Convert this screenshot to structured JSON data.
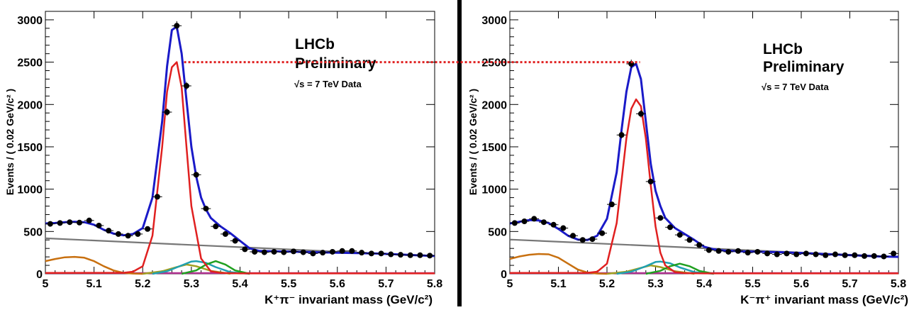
{
  "chart_data": [
    {
      "type": "scatter",
      "xlabel": "K⁺π⁻ invariant mass (GeV/c²)",
      "ylabel": "Events / ( 0.02 GeV/c² )",
      "xlim": [
        5.0,
        5.8
      ],
      "ylim": [
        0,
        3100
      ],
      "xticks": [
        "5",
        "5.1",
        "5.2",
        "5.3",
        "5.4",
        "5.5",
        "5.6",
        "5.7",
        "5.8"
      ],
      "yticks": [
        "0",
        "500",
        "1000",
        "1500",
        "2000",
        "2500",
        "3000"
      ],
      "annotation": {
        "experiment": "LHCb",
        "status": "Preliminary",
        "energy": "√s = 7 TeV Data"
      },
      "reference_line_y": 2500,
      "series": [
        {
          "kind": "data",
          "color": "#000000",
          "x": [
            5.01,
            5.03,
            5.05,
            5.07,
            5.09,
            5.11,
            5.13,
            5.15,
            5.17,
            5.19,
            5.21,
            5.23,
            5.25,
            5.27,
            5.29,
            5.31,
            5.33,
            5.35,
            5.37,
            5.39,
            5.41,
            5.43,
            5.45,
            5.47,
            5.49,
            5.51,
            5.53,
            5.55,
            5.57,
            5.59,
            5.61,
            5.63,
            5.65,
            5.67,
            5.69,
            5.71,
            5.73,
            5.75,
            5.77,
            5.79
          ],
          "y": [
            590,
            600,
            610,
            605,
            630,
            570,
            510,
            470,
            450,
            470,
            530,
            910,
            1910,
            2930,
            2220,
            1170,
            770,
            560,
            470,
            390,
            290,
            260,
            255,
            260,
            255,
            265,
            255,
            240,
            250,
            260,
            270,
            270,
            250,
            240,
            240,
            230,
            225,
            220,
            220,
            215
          ]
        },
        {
          "kind": "total_fit",
          "color": "#1a1ac8",
          "x": [
            5.0,
            5.02,
            5.04,
            5.06,
            5.08,
            5.1,
            5.12,
            5.14,
            5.16,
            5.18,
            5.2,
            5.22,
            5.24,
            5.25,
            5.26,
            5.27,
            5.28,
            5.29,
            5.3,
            5.31,
            5.32,
            5.33,
            5.34,
            5.36,
            5.38,
            5.4,
            5.42,
            5.44,
            5.48,
            5.52,
            5.56,
            5.6,
            5.64,
            5.68,
            5.72,
            5.76,
            5.8
          ],
          "y": [
            595,
            600,
            610,
            615,
            610,
            580,
            520,
            475,
            455,
            470,
            540,
            900,
            1800,
            2450,
            2880,
            2920,
            2600,
            2050,
            1500,
            1150,
            900,
            760,
            660,
            560,
            480,
            390,
            300,
            270,
            265,
            260,
            255,
            250,
            245,
            240,
            230,
            220,
            210
          ]
        },
        {
          "kind": "signal",
          "color": "#e02020",
          "x": [
            5.0,
            5.16,
            5.18,
            5.2,
            5.22,
            5.24,
            5.25,
            5.26,
            5.27,
            5.28,
            5.29,
            5.3,
            5.32,
            5.34,
            5.36,
            5.4,
            5.8
          ],
          "y": [
            10,
            12,
            25,
            90,
            450,
            1500,
            2150,
            2440,
            2500,
            2200,
            1500,
            800,
            180,
            30,
            10,
            5,
            5
          ]
        },
        {
          "kind": "combinatorial_background",
          "color": "#777777",
          "x": [
            5.0,
            5.8
          ],
          "y": [
            420,
            210
          ]
        },
        {
          "kind": "partially_reconstructed_background",
          "color": "#c87010",
          "x": [
            5.0,
            5.02,
            5.04,
            5.06,
            5.08,
            5.1,
            5.12,
            5.14,
            5.16,
            5.18,
            5.2
          ],
          "y": [
            150,
            175,
            195,
            200,
            190,
            150,
            90,
            40,
            12,
            3,
            0
          ]
        },
        {
          "kind": "peaking_background_1",
          "color": "#20a0b0",
          "x": [
            5.22,
            5.25,
            5.28,
            5.3,
            5.31,
            5.33,
            5.35,
            5.38,
            5.42
          ],
          "y": [
            0,
            30,
            100,
            145,
            150,
            130,
            80,
            20,
            0
          ]
        },
        {
          "kind": "peaking_background_2",
          "color": "#20a020",
          "x": [
            5.28,
            5.31,
            5.33,
            5.35,
            5.37,
            5.39,
            5.42
          ],
          "y": [
            0,
            40,
            110,
            150,
            110,
            40,
            0
          ]
        },
        {
          "kind": "peaking_background_3",
          "color": "#a0a020",
          "x": [
            5.2,
            5.24,
            5.27,
            5.29,
            5.31,
            5.34,
            5.38
          ],
          "y": [
            0,
            30,
            80,
            110,
            90,
            35,
            0
          ]
        },
        {
          "kind": "flat_component",
          "color": "#b03090",
          "x": [
            5.0,
            5.8
          ],
          "y": [
            8,
            8
          ]
        }
      ]
    },
    {
      "type": "scatter",
      "xlabel": "K⁻π⁺ invariant mass (GeV/c²)",
      "ylabel": "Events / ( 0.02 GeV/c² )",
      "xlim": [
        5.0,
        5.8
      ],
      "ylim": [
        0,
        3100
      ],
      "xticks": [
        "5",
        "5.1",
        "5.2",
        "5.3",
        "5.4",
        "5.5",
        "5.6",
        "5.7",
        "5.8"
      ],
      "yticks": [
        "0",
        "500",
        "1000",
        "1500",
        "2000",
        "2500",
        "3000"
      ],
      "annotation": {
        "experiment": "LHCb",
        "status": "Preliminary",
        "energy": "√s = 7 TeV Data"
      },
      "series": [
        {
          "kind": "data",
          "color": "#000000",
          "x": [
            5.01,
            5.03,
            5.05,
            5.07,
            5.09,
            5.11,
            5.13,
            5.15,
            5.17,
            5.19,
            5.21,
            5.23,
            5.25,
            5.27,
            5.29,
            5.31,
            5.33,
            5.35,
            5.37,
            5.39,
            5.41,
            5.43,
            5.45,
            5.47,
            5.49,
            5.51,
            5.53,
            5.55,
            5.57,
            5.59,
            5.61,
            5.63,
            5.65,
            5.67,
            5.69,
            5.71,
            5.73,
            5.75,
            5.77,
            5.79
          ],
          "y": [
            600,
            620,
            650,
            610,
            580,
            540,
            450,
            400,
            410,
            480,
            820,
            1640,
            2480,
            1890,
            1090,
            660,
            550,
            460,
            400,
            340,
            280,
            270,
            260,
            270,
            250,
            260,
            240,
            230,
            240,
            230,
            240,
            230,
            220,
            230,
            220,
            220,
            210,
            210,
            205,
            240
          ]
        },
        {
          "kind": "total_fit",
          "color": "#1a1ac8",
          "x": [
            5.0,
            5.02,
            5.04,
            5.06,
            5.08,
            5.1,
            5.12,
            5.14,
            5.16,
            5.18,
            5.2,
            5.22,
            5.23,
            5.24,
            5.25,
            5.26,
            5.27,
            5.28,
            5.29,
            5.3,
            5.31,
            5.32,
            5.34,
            5.36,
            5.38,
            5.4,
            5.42,
            5.44,
            5.48,
            5.52,
            5.56,
            5.6,
            5.64,
            5.68,
            5.72,
            5.76,
            5.8
          ],
          "y": [
            595,
            615,
            635,
            630,
            600,
            530,
            450,
            405,
            400,
            450,
            650,
            1200,
            1700,
            2150,
            2440,
            2480,
            2300,
            1800,
            1300,
            980,
            800,
            660,
            540,
            470,
            400,
            320,
            290,
            275,
            265,
            260,
            255,
            245,
            235,
            225,
            215,
            205,
            200
          ]
        },
        {
          "kind": "signal",
          "color": "#e02020",
          "x": [
            5.0,
            5.16,
            5.18,
            5.2,
            5.22,
            5.23,
            5.24,
            5.25,
            5.26,
            5.27,
            5.28,
            5.29,
            5.3,
            5.31,
            5.32,
            5.34,
            5.36,
            5.4,
            5.8
          ],
          "y": [
            10,
            12,
            25,
            120,
            600,
            1100,
            1600,
            1950,
            2060,
            1980,
            1600,
            1050,
            560,
            250,
            100,
            20,
            8,
            5,
            5
          ]
        },
        {
          "kind": "combinatorial_background",
          "color": "#777777",
          "x": [
            5.0,
            5.8
          ],
          "y": [
            405,
            200
          ]
        },
        {
          "kind": "partially_reconstructed_background",
          "color": "#c87010",
          "x": [
            5.0,
            5.02,
            5.04,
            5.06,
            5.08,
            5.1,
            5.12,
            5.14,
            5.16,
            5.18,
            5.2
          ],
          "y": [
            175,
            205,
            225,
            235,
            230,
            190,
            120,
            50,
            15,
            3,
            0
          ]
        },
        {
          "kind": "peaking_background_1",
          "color": "#20a0b0",
          "x": [
            5.22,
            5.25,
            5.28,
            5.3,
            5.31,
            5.33,
            5.35,
            5.38,
            5.42
          ],
          "y": [
            0,
            25,
            90,
            140,
            145,
            125,
            75,
            20,
            0
          ]
        },
        {
          "kind": "peaking_background_2",
          "color": "#20a020",
          "x": [
            5.28,
            5.31,
            5.33,
            5.35,
            5.37,
            5.39,
            5.42
          ],
          "y": [
            0,
            35,
            90,
            120,
            90,
            35,
            0
          ]
        },
        {
          "kind": "peaking_background_3",
          "color": "#a0a020",
          "x": [
            5.2,
            5.24,
            5.27,
            5.29,
            5.31,
            5.34,
            5.38
          ],
          "y": [
            0,
            25,
            70,
            100,
            80,
            30,
            0
          ]
        },
        {
          "kind": "flat_component",
          "color": "#b03090",
          "x": [
            5.0,
            5.8
          ],
          "y": [
            8,
            8
          ]
        }
      ]
    }
  ]
}
